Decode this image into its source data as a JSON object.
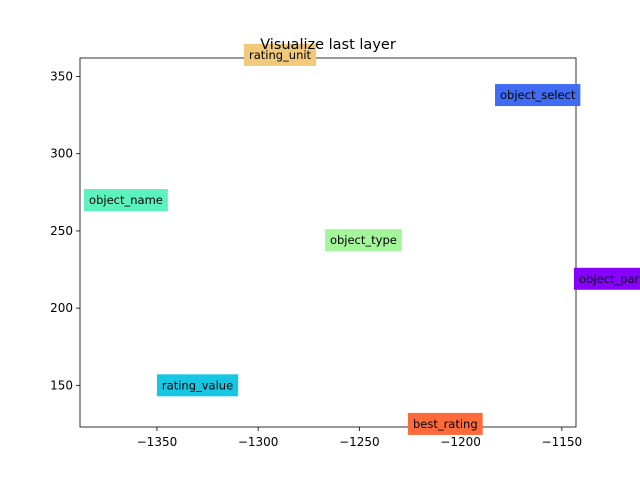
{
  "chart_data": {
    "type": "scatter",
    "title": "Visualize last layer",
    "xlabel": "",
    "ylabel": "",
    "xlim": [
      -1388,
      -1143
    ],
    "ylim": [
      123,
      362
    ],
    "xticks": [
      -1350,
      -1300,
      -1250,
      -1200,
      -1150
    ],
    "yticks": [
      150,
      200,
      250,
      300,
      350
    ],
    "xtick_labels": [
      "−1350",
      "−1300",
      "−1250",
      "−1200",
      "−1150"
    ],
    "ytick_labels": [
      "150",
      "200",
      "250",
      "300",
      "350"
    ],
    "grid": false,
    "points": [
      {
        "label": "rating_unit",
        "x": -1307,
        "y": 364,
        "color": "#f0c97a"
      },
      {
        "label": "object_select",
        "x": -1183,
        "y": 338,
        "color": "#3f6cf2"
      },
      {
        "label": "object_name",
        "x": -1386,
        "y": 270,
        "color": "#5cf2c0"
      },
      {
        "label": "object_type",
        "x": -1267,
        "y": 244,
        "color": "#a4f59b"
      },
      {
        "label": "object_par",
        "x": -1144,
        "y": 219,
        "color": "#8800ff"
      },
      {
        "label": "rating_value",
        "x": -1350,
        "y": 150,
        "color": "#17c6e3"
      },
      {
        "label": "best_rating",
        "x": -1226,
        "y": 125,
        "color": "#ff6a3a"
      }
    ]
  }
}
